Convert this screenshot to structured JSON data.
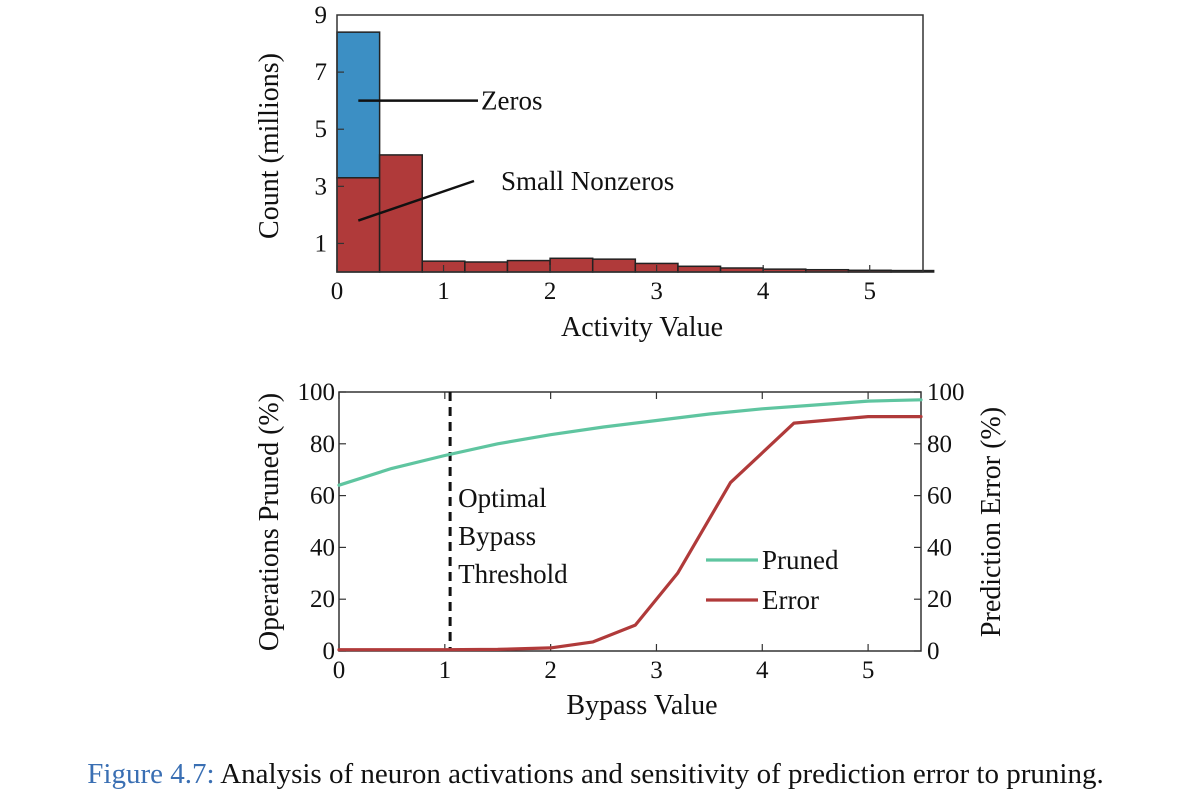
{
  "colors": {
    "zeros": "#3c8fc4",
    "nonzeros": "#b03a3a",
    "pruned": "#5fc5a0",
    "error": "#b03a3a",
    "caption_ref": "#3a6fb3"
  },
  "caption": {
    "ref": "Figure 4.7:",
    "text": " Analysis of neuron activations and sensitivity of prediction error to pruning."
  },
  "chart_data": [
    {
      "type": "bar",
      "stacked": true,
      "xlabel": "Activity Value",
      "ylabel": "Count (millions)",
      "xlim": [
        0,
        5.5
      ],
      "ylim": [
        0,
        9
      ],
      "x_ticks": [
        "0",
        "1",
        "2",
        "3",
        "4",
        "5"
      ],
      "y_ticks": [
        "1",
        "3",
        "5",
        "7",
        "9"
      ],
      "bin_width": 0.4,
      "bins": [
        {
          "x0": 0.0,
          "zeros": 5.1,
          "nonzeros": 3.3
        },
        {
          "x0": 0.4,
          "zeros": 0,
          "nonzeros": 4.1
        },
        {
          "x0": 0.8,
          "zeros": 0,
          "nonzeros": 0.38
        },
        {
          "x0": 1.2,
          "zeros": 0,
          "nonzeros": 0.35
        },
        {
          "x0": 1.6,
          "zeros": 0,
          "nonzeros": 0.4
        },
        {
          "x0": 2.0,
          "zeros": 0,
          "nonzeros": 0.48
        },
        {
          "x0": 2.4,
          "zeros": 0,
          "nonzeros": 0.45
        },
        {
          "x0": 2.8,
          "zeros": 0,
          "nonzeros": 0.3
        },
        {
          "x0": 3.2,
          "zeros": 0,
          "nonzeros": 0.2
        },
        {
          "x0": 3.6,
          "zeros": 0,
          "nonzeros": 0.14
        },
        {
          "x0": 4.0,
          "zeros": 0,
          "nonzeros": 0.1
        },
        {
          "x0": 4.4,
          "zeros": 0,
          "nonzeros": 0.08
        },
        {
          "x0": 4.8,
          "zeros": 0,
          "nonzeros": 0.06
        },
        {
          "x0": 5.2,
          "zeros": 0,
          "nonzeros": 0.05
        }
      ],
      "annotations": [
        {
          "text": "Zeros",
          "from": [
            0.2,
            6.0
          ],
          "to": [
            1.25,
            6.0
          ]
        },
        {
          "text": "Small Nonzeros",
          "from": [
            0.2,
            1.8
          ],
          "to": [
            1.25,
            3.2
          ]
        }
      ]
    },
    {
      "type": "line",
      "xlabel": "Bypass Value",
      "ylabel": "Operations Pruned (%)",
      "y2label": "Prediction Error (%)",
      "xlim": [
        0,
        5.5
      ],
      "ylim": [
        0,
        100
      ],
      "x_ticks": [
        "0",
        "1",
        "2",
        "3",
        "4",
        "5"
      ],
      "y_ticks": [
        "0",
        "20",
        "40",
        "60",
        "80",
        "100"
      ],
      "threshold": {
        "x": 1.05,
        "label_lines": [
          "Optimal",
          "Bypass",
          "Threshold"
        ]
      },
      "series": [
        {
          "name": "Pruned",
          "axis": "left",
          "x": [
            0,
            0.5,
            1.0,
            1.5,
            2.0,
            2.5,
            3.0,
            3.5,
            4.0,
            4.5,
            5.0,
            5.5
          ],
          "y": [
            64,
            70.5,
            75.5,
            80,
            83.5,
            86.5,
            89,
            91.5,
            93.5,
            95,
            96.5,
            97
          ]
        },
        {
          "name": "Error",
          "axis": "right",
          "x": [
            0,
            1.0,
            1.5,
            2.0,
            2.4,
            2.8,
            3.2,
            3.7,
            4.3,
            5.0,
            5.5
          ],
          "y": [
            0.5,
            0.5,
            0.6,
            1.2,
            3.5,
            10,
            30,
            65,
            88,
            90.5,
            90.5
          ]
        }
      ]
    }
  ]
}
